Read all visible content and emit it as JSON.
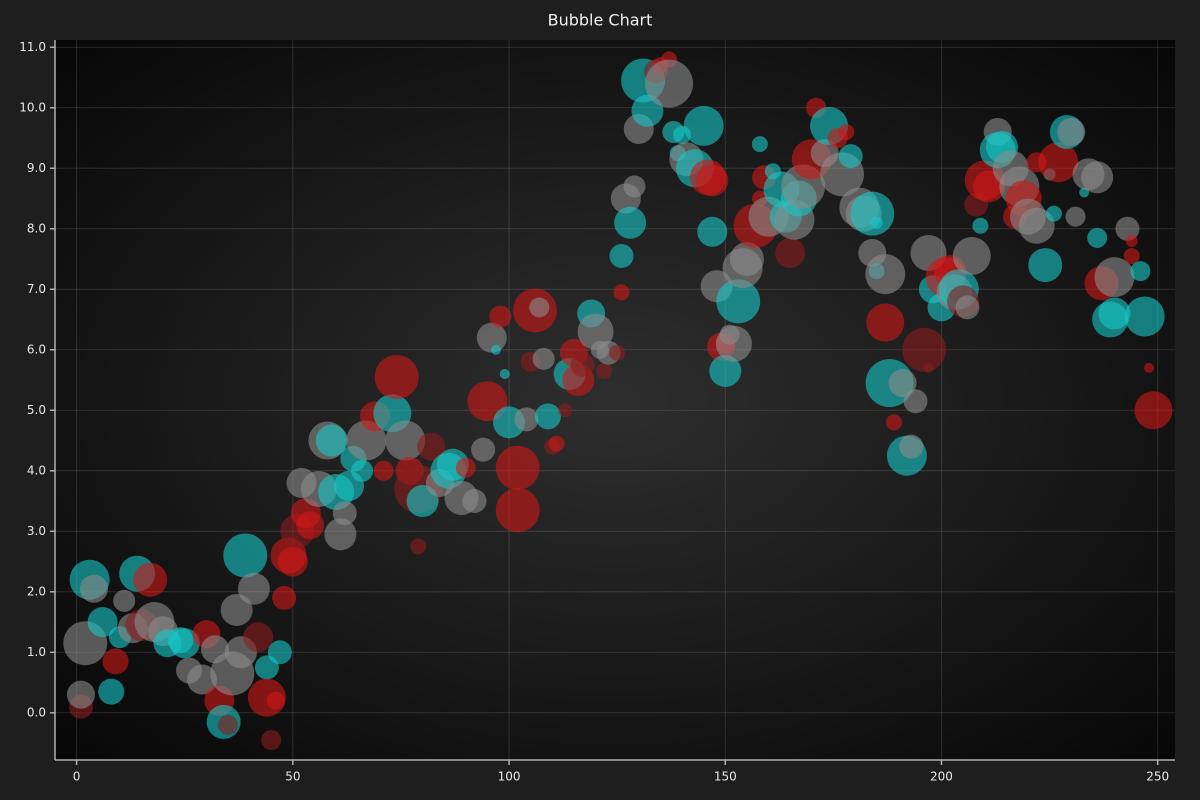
{
  "chart_data": {
    "type": "bubble",
    "title": "Bubble Chart",
    "x": [
      2,
      3,
      4,
      1,
      1,
      6,
      8,
      9,
      10,
      11,
      13,
      14,
      15,
      17,
      18,
      20,
      21,
      24,
      25,
      26,
      29,
      30,
      32,
      33,
      34,
      35,
      36,
      37,
      38,
      39,
      41,
      42,
      44,
      44,
      45,
      46,
      47,
      48,
      49,
      50,
      51,
      53,
      54,
      52,
      56,
      58,
      59,
      60,
      61,
      62,
      63,
      64,
      66,
      67,
      69,
      71,
      73,
      74,
      76,
      77,
      79,
      80,
      79,
      82,
      84,
      86,
      87,
      89,
      90,
      92,
      94,
      95,
      96,
      97,
      98,
      99,
      100,
      102,
      102,
      104,
      105,
      106,
      107,
      108,
      109,
      110,
      111,
      113,
      114,
      115,
      116,
      117,
      119,
      120,
      121,
      122,
      123,
      125,
      126,
      126,
      127,
      128,
      129,
      130,
      131,
      132,
      134,
      135,
      137,
      137,
      138,
      139,
      140,
      141,
      143,
      145,
      146,
      147,
      147,
      148,
      149,
      150,
      150,
      151,
      152,
      153,
      154,
      155,
      157,
      158,
      158,
      159,
      160,
      161,
      163,
      164,
      165,
      166,
      167,
      168,
      170,
      171,
      173,
      174,
      176,
      177,
      178,
      179,
      181,
      182,
      184,
      185,
      184,
      185,
      187,
      187,
      188,
      189,
      191,
      192,
      193,
      194,
      196,
      197,
      197,
      198,
      200,
      201,
      202,
      203,
      204,
      205,
      206,
      207,
      208,
      209,
      210,
      211,
      213,
      213,
      214,
      216,
      217,
      218,
      219,
      220,
      222,
      222,
      224,
      225,
      226,
      227,
      229,
      230,
      231,
      233,
      234,
      236,
      236,
      237,
      239,
      240,
      240,
      243,
      244,
      244,
      246,
      247,
      248,
      249
    ],
    "values": [
      1.15,
      2.2,
      2.05,
      0.1,
      0.3,
      1.5,
      0.35,
      0.85,
      1.25,
      1.85,
      1.4,
      2.3,
      1.45,
      2.2,
      1.5,
      1.35,
      1.15,
      1.2,
      1.15,
      0.7,
      0.55,
      1.3,
      1.05,
      0.2,
      -0.15,
      -0.2,
      0.65,
      1.7,
      1.0,
      2.6,
      2.05,
      1.25,
      0.75,
      0.25,
      -0.45,
      0.2,
      1.0,
      1.9,
      2.6,
      2.5,
      3.0,
      3.3,
      3.1,
      3.8,
      3.7,
      4.5,
      4.5,
      3.65,
      2.95,
      3.3,
      3.75,
      4.2,
      4.0,
      4.5,
      4.9,
      4.0,
      4.95,
      5.55,
      4.5,
      4.0,
      3.7,
      3.5,
      2.75,
      4.4,
      3.8,
      4.0,
      4.1,
      3.55,
      4.05,
      3.5,
      4.35,
      5.15,
      6.2,
      6.0,
      6.55,
      5.6,
      4.8,
      4.05,
      3.35,
      4.85,
      5.8,
      6.65,
      6.7,
      5.85,
      4.9,
      4.4,
      4.45,
      5.0,
      5.6,
      5.95,
      5.5,
      5.75,
      6.6,
      6.3,
      6.0,
      5.65,
      5.95,
      5.95,
      6.95,
      7.55,
      8.5,
      8.1,
      8.7,
      9.65,
      10.45,
      9.95,
      10.6,
      10.7,
      10.8,
      10.4,
      9.6,
      9.25,
      9.55,
      9.15,
      9.0,
      9.7,
      8.85,
      8.8,
      7.95,
      7.05,
      6.05,
      6.1,
      5.65,
      6.25,
      6.1,
      6.8,
      7.35,
      7.5,
      8.05,
      9.4,
      8.5,
      8.85,
      8.2,
      8.95,
      8.65,
      8.2,
      7.6,
      8.15,
      8.5,
      8.7,
      9.15,
      10.0,
      9.25,
      9.7,
      9.5,
      8.9,
      9.6,
      9.2,
      8.35,
      8.25,
      8.25,
      8.1,
      7.6,
      7.3,
      7.25,
      6.45,
      5.45,
      4.8,
      5.45,
      4.25,
      4.4,
      5.15,
      6.0,
      5.7,
      7.6,
      7.0,
      6.7,
      7.2,
      7.3,
      6.95,
      7.0,
      6.8,
      6.7,
      7.55,
      8.4,
      8.05,
      8.8,
      8.7,
      9.6,
      9.3,
      9.35,
      9.0,
      8.2,
      8.7,
      8.5,
      8.2,
      8.05,
      9.1,
      7.4,
      8.9,
      8.25,
      9.1,
      9.6,
      9.6,
      8.2,
      8.6,
      8.9,
      8.85,
      7.85,
      7.1,
      6.5,
      6.6,
      7.2,
      8.0,
      7.8,
      7.55,
      7.3,
      6.55,
      5.7,
      5.0
    ],
    "sizes": [
      22,
      20,
      14,
      12,
      14,
      15,
      13,
      13,
      11,
      11,
      15,
      18,
      16,
      17,
      20,
      15,
      14,
      13,
      15,
      13,
      15,
      14,
      14,
      15,
      17,
      10,
      22,
      16,
      16,
      22,
      16,
      15,
      12,
      19,
      10,
      9,
      12,
      12,
      18,
      15,
      17,
      15,
      14,
      15,
      18,
      19,
      16,
      18,
      16,
      12,
      15,
      13,
      11,
      20,
      15,
      10,
      19,
      22,
      20,
      14,
      24,
      16,
      8,
      14,
      14,
      18,
      16,
      17,
      10,
      12,
      12,
      20,
      15,
      5,
      11,
      5,
      16,
      22,
      22,
      12,
      10,
      22,
      10,
      11,
      13,
      8,
      8,
      7,
      16,
      14,
      16,
      12,
      14,
      18,
      9,
      8,
      12,
      8,
      8,
      12,
      15,
      16,
      11,
      15,
      22,
      16,
      12,
      8,
      8,
      24,
      11,
      8,
      9,
      17,
      19,
      20,
      18,
      16,
      15,
      16,
      14,
      10,
      16,
      10,
      18,
      22,
      20,
      17,
      22,
      8,
      8,
      12,
      20,
      8,
      18,
      16,
      15,
      20,
      18,
      22,
      20,
      10,
      14,
      19,
      10,
      22,
      8,
      12,
      20,
      18,
      22,
      6,
      14,
      8,
      20,
      19,
      24,
      8,
      14,
      20,
      12,
      12,
      22,
      5,
      18,
      14,
      14,
      20,
      16,
      18,
      20,
      16,
      12,
      19,
      12,
      8,
      20,
      16,
      14,
      18,
      16,
      18,
      12,
      20,
      18,
      18,
      18,
      10,
      17,
      6,
      8,
      20,
      17,
      14,
      10,
      5,
      16,
      16,
      10,
      17,
      18,
      16,
      20,
      12,
      6,
      8,
      10,
      20,
      5,
      19
    ],
    "colors": [
      "G",
      "C",
      "G",
      "D",
      "G",
      "C",
      "C",
      "R",
      "C",
      "G",
      "G",
      "C",
      "D",
      "R",
      "G",
      "G",
      "C",
      "C",
      "C",
      "G",
      "G",
      "R",
      "G",
      "R",
      "C",
      "D",
      "G",
      "G",
      "G",
      "C",
      "G",
      "D",
      "C",
      "R",
      "D",
      "R",
      "C",
      "R",
      "R",
      "R",
      "D",
      "R",
      "R",
      "G",
      "G",
      "G",
      "C",
      "C",
      "G",
      "G",
      "C",
      "C",
      "C",
      "G",
      "R",
      "R",
      "C",
      "R",
      "G",
      "R",
      "D",
      "C",
      "D",
      "D",
      "G",
      "C",
      "C",
      "G",
      "R",
      "G",
      "G",
      "R",
      "G",
      "C",
      "R",
      "C",
      "C",
      "R",
      "R",
      "G",
      "D",
      "R",
      "G",
      "G",
      "C",
      "D",
      "R",
      "D",
      "C",
      "R",
      "R",
      "D",
      "C",
      "G",
      "G",
      "D",
      "G",
      "D",
      "R",
      "C",
      "G",
      "C",
      "G",
      "G",
      "C",
      "C",
      "D",
      "R",
      "R",
      "G",
      "C",
      "C",
      "C",
      "G",
      "C",
      "C",
      "R",
      "R",
      "C",
      "G",
      "R",
      "R",
      "C",
      "G",
      "G",
      "C",
      "G",
      "G",
      "R",
      "C",
      "R",
      "R",
      "G",
      "C",
      "C",
      "C",
      "D",
      "G",
      "C",
      "G",
      "R",
      "R",
      "G",
      "C",
      "R",
      "G",
      "R",
      "C",
      "G",
      "G",
      "C",
      "C",
      "G",
      "C",
      "G",
      "R",
      "C",
      "R",
      "G",
      "C",
      "G",
      "G",
      "D",
      "D",
      "G",
      "C",
      "C",
      "R",
      "R",
      "G",
      "C",
      "D",
      "G",
      "G",
      "D",
      "C",
      "R",
      "R",
      "G",
      "C",
      "C",
      "G",
      "R",
      "G",
      "R",
      "G",
      "G",
      "R",
      "C",
      "C",
      "C",
      "R",
      "C",
      "G",
      "G",
      "C",
      "G",
      "G",
      "C",
      "R",
      "C",
      "C",
      "G",
      "G",
      "R",
      "R",
      "C",
      "C",
      "R",
      "R"
    ],
    "palette": {
      "R": "#d01818",
      "C": "#18c8c8",
      "G": "#8c8c8c",
      "D": "#8a1c1c"
    },
    "xlim": [
      -5,
      254
    ],
    "ylim": [
      -0.78,
      11.12
    ],
    "xticks": [
      0,
      50,
      100,
      150,
      200,
      250
    ],
    "yticks": [
      {
        "value": 0,
        "label": "0.0"
      },
      {
        "value": 1,
        "label": "1.0"
      },
      {
        "value": 2,
        "label": "2.0"
      },
      {
        "value": 3,
        "label": "3.0"
      },
      {
        "value": 4,
        "label": "4.0"
      },
      {
        "value": 5,
        "label": "5.0"
      },
      {
        "value": 6,
        "label": "6.0"
      },
      {
        "value": 7,
        "label": "7.0"
      },
      {
        "value": 8,
        "label": "8.0"
      },
      {
        "value": 9,
        "label": "9.0"
      },
      {
        "value": 10,
        "label": "10.0"
      },
      {
        "value": 11,
        "label": "11.0"
      }
    ],
    "grid": true
  }
}
